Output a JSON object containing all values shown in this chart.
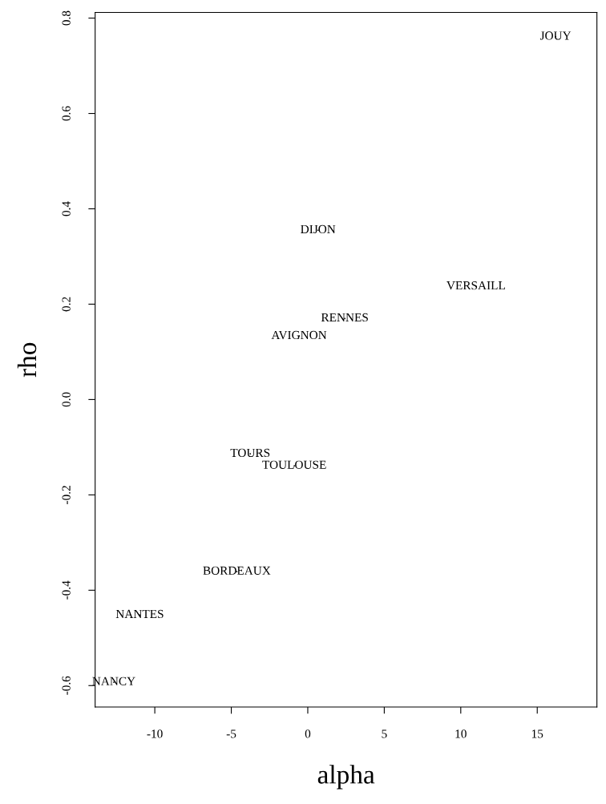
{
  "chart_data": {
    "type": "scatter",
    "xlabel": "alpha",
    "ylabel": "rho",
    "marker": "none",
    "series": [
      {
        "color": "#000000",
        "x": [
          16.2,
          0.67,
          11.0,
          2.42,
          -0.57,
          -3.76,
          -0.88,
          -4.64,
          -10.98,
          -12.68
        ],
        "values": [
          0.761,
          0.355,
          0.237,
          0.17,
          0.133,
          -0.114,
          -0.139,
          -0.361,
          -0.452,
          -0.593
        ],
        "value_labels": [
          "JOUY",
          "DIJON",
          "VERSAILL",
          "RENNES",
          "AVIGNON",
          "TOURS",
          "TOULOUSE",
          "BORDEAUX",
          "NANTES",
          "NANCY"
        ]
      }
    ],
    "xlim": [
      -13.9,
      18.9
    ],
    "ylim": [
      -0.645,
      0.812
    ],
    "xticks": [
      -10,
      -5,
      0,
      5,
      10,
      15
    ],
    "yticks": [
      {
        "value": -0.6,
        "label": "-0.6"
      },
      {
        "value": -0.4,
        "label": "-0.4"
      },
      {
        "value": -0.2,
        "label": "-0.2"
      },
      {
        "value": 0.0,
        "label": "0.0"
      },
      {
        "value": 0.2,
        "label": "0.2"
      },
      {
        "value": 0.4,
        "label": "0.4"
      },
      {
        "value": 0.6,
        "label": "0.6"
      },
      {
        "value": 0.8,
        "label": "0.8"
      }
    ],
    "grid": false,
    "legend": false
  }
}
